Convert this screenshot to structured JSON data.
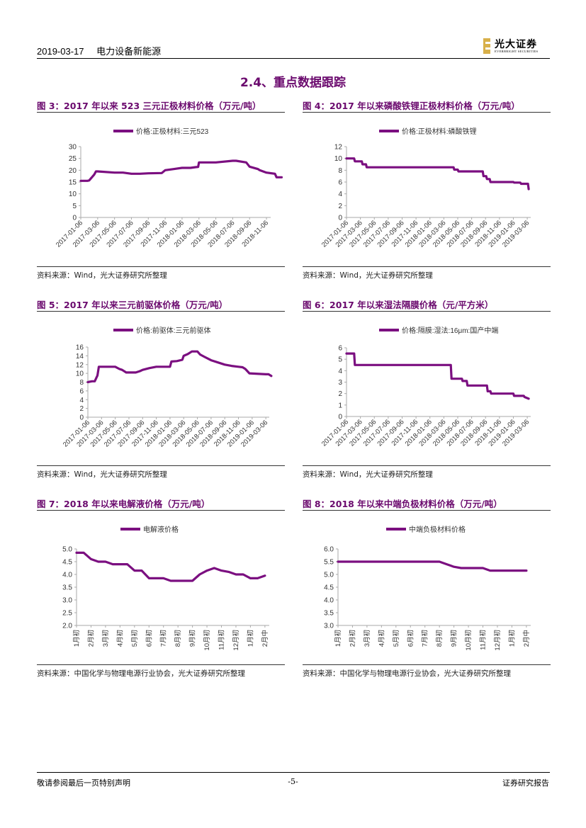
{
  "header": {
    "date": "2019-03-17",
    "sector": "电力设备新能源",
    "logo_cn": "光大证券",
    "logo_en": "EVERBRIGHT SECURITIES",
    "logo_color": "#d8b04a"
  },
  "section_title": "2.4、重点数据跟踪",
  "accent_color": "#6b0a6e",
  "line_color": "#7b0f80",
  "figures": [
    {
      "title": "图 3：2017 年以来 523 三元正极材料价格（万元/吨）",
      "source": "资料来源：Wind，光大证券研究所整理"
    },
    {
      "title": "图 4：2017 年以来磷酸铁锂正极材料价格（万元/吨）",
      "source": "资料来源：Wind，光大证券研究所整理"
    },
    {
      "title": "图 5：2017 年以来三元前驱体价格（万元/吨）",
      "source": "资料来源：Wind，光大证券研究所整理"
    },
    {
      "title": "图 6：2017 年以来湿法隔膜价格（元/平方米）",
      "source": "资料来源：Wind，光大证券研究所整理"
    },
    {
      "title": "图 7：2018 年以来电解液价格（万元/吨）",
      "source": "资料来源：中国化学与物理电源行业协会，光大证券研究所整理"
    },
    {
      "title": "图 8：2018 年以来中端负极材料价格（万元/吨）",
      "source": "资料来源：中国化学与物理电源行业协会，光大证券研究所整理"
    }
  ],
  "chart_data": [
    {
      "type": "line",
      "title": "2017年以来523三元正极材料价格（万元/吨）",
      "legend": "价格:正极材料:三元523",
      "legend_position": "top",
      "xlabel": "",
      "ylabel": "",
      "ylim": [
        0,
        30
      ],
      "yticks": [
        "0",
        "5",
        "10",
        "15",
        "20",
        "25",
        "30"
      ],
      "categories": [
        "2017-01-06",
        "2017-03-06",
        "2017-05-06",
        "2017-07-06",
        "2017-09-06",
        "2017-11-06",
        "2018-01-06",
        "2018-03-06",
        "2018-05-06",
        "2018-07-06",
        "2018-09-06",
        "2018-11-06"
      ],
      "x": [
        0,
        0.4,
        0.5,
        0.8,
        0.9,
        1.0,
        2.0,
        2.5,
        3.0,
        3.5,
        4.0,
        4.8,
        5.0,
        5.5,
        6.0,
        6.5,
        6.8,
        6.95,
        7.0,
        8.0,
        9.0,
        9.2,
        9.8,
        10.0,
        10.5,
        10.6,
        11.0,
        11.5,
        11.6,
        11.9
      ],
      "values": [
        15.5,
        15.5,
        15.7,
        18.2,
        19.5,
        19.5,
        19,
        19,
        18.5,
        18.5,
        18.7,
        18.8,
        20,
        20.5,
        21,
        21,
        21.3,
        21.4,
        23.3,
        23.3,
        24,
        24,
        23.3,
        21.5,
        20.5,
        20,
        19,
        18.5,
        17,
        17
      ]
    },
    {
      "type": "line",
      "title": "2017年以来磷酸铁锂正极材料价格（万元/吨）",
      "legend": "价格:正极材料:磷酸铁锂",
      "legend_position": "top",
      "ylim": [
        0,
        12
      ],
      "yticks": [
        "0",
        "2",
        "4",
        "6",
        "8",
        "10",
        "12"
      ],
      "categories": [
        "2017-01-06",
        "2017-03-06",
        "2017-05-06",
        "2017-07-06",
        "2017-09-06",
        "2017-11-06",
        "2018-01-06",
        "2018-03-06",
        "2018-05-06",
        "2018-07-06",
        "2018-09-06",
        "2018-11-06",
        "2019-01-06",
        "2019-03-06"
      ],
      "x": [
        0,
        0.55,
        0.6,
        1.1,
        1.15,
        1.4,
        1.45,
        7.7,
        7.75,
        8.0,
        8.05,
        9.8,
        9.85,
        10.05,
        10.1,
        10.3,
        10.35,
        12.0,
        12.05,
        12.5,
        12.55,
        13.05,
        13.1
      ],
      "values": [
        10,
        10,
        9.5,
        9.5,
        9,
        9,
        8.5,
        8.5,
        8.1,
        8.1,
        7.8,
        7.8,
        7,
        7,
        6.5,
        6.5,
        6,
        6,
        5.9,
        5.9,
        5.7,
        5.7,
        4.8
      ]
    },
    {
      "type": "line",
      "title": "2017年以来三元前驱体价格（万元/吨）",
      "legend": "价格:前驱体:三元前驱体",
      "legend_position": "top",
      "ylim": [
        0,
        16
      ],
      "yticks": [
        "0",
        "2",
        "4",
        "6",
        "8",
        "10",
        "12",
        "14",
        "16"
      ],
      "categories": [
        "2017-01-06",
        "2017-03-06",
        "2017-05-06",
        "2017-07-06",
        "2017-09-06",
        "2017-11-06",
        "2018-01-06",
        "2018-03-06",
        "2018-05-06",
        "2018-07-06",
        "2018-09-06",
        "2018-11-06",
        "2019-01-06",
        "2019-03-06"
      ],
      "x": [
        0,
        0.3,
        0.5,
        0.7,
        0.8,
        1.0,
        2.0,
        2.3,
        2.5,
        2.8,
        3.0,
        3.5,
        3.8,
        4.0,
        4.5,
        5.0,
        5.5,
        6.0,
        6.1,
        6.5,
        6.9,
        7.0,
        7.3,
        7.6,
        8.0,
        8.2,
        8.5,
        9.0,
        9.5,
        10.0,
        10.5,
        11.0,
        11.3,
        11.5,
        11.8,
        13.0,
        13.2,
        13.4
      ],
      "values": [
        8,
        8.2,
        8.2,
        9.5,
        11.5,
        11.5,
        11.5,
        11,
        10.8,
        10.2,
        10.2,
        10.2,
        10.5,
        10.8,
        11.2,
        11.5,
        11.5,
        11.5,
        12.7,
        12.8,
        13.1,
        14,
        14.4,
        15,
        15,
        14.3,
        13.8,
        13,
        12.5,
        12,
        11.7,
        11.5,
        11.4,
        11,
        10,
        9.8,
        9.8,
        9.4
      ]
    },
    {
      "type": "line",
      "title": "2017年以来湿法隔膜价格（元/平方米）",
      "legend": "价格:隔膜:湿法:16μm:国产中端",
      "legend_position": "top",
      "ylim": [
        0,
        6
      ],
      "yticks": [
        "0",
        "1",
        "2",
        "3",
        "4",
        "5",
        "6"
      ],
      "categories": [
        "2017-01-06",
        "2017-03-06",
        "2017-05-06",
        "2017-07-06",
        "2017-09-06",
        "2017-11-06",
        "2018-01-06",
        "2018-03-06",
        "2018-05-06",
        "2018-07-06",
        "2018-09-06",
        "2018-11-06",
        "2019-01-06",
        "2019-03-06"
      ],
      "x": [
        0,
        0.55,
        0.6,
        7.5,
        7.55,
        8.3,
        8.35,
        8.65,
        8.7,
        10.1,
        10.15,
        10.35,
        10.4,
        12.0,
        12.05,
        12.75,
        12.8,
        13.1
      ],
      "values": [
        5.5,
        5.5,
        4.5,
        4.5,
        3.3,
        3.3,
        3.1,
        3.1,
        2.7,
        2.7,
        2.2,
        2.2,
        2.0,
        2.0,
        1.8,
        1.8,
        1.7,
        1.55
      ]
    },
    {
      "type": "line",
      "title": "2018年以来电解液价格（万元/吨）",
      "legend": "电解液价格",
      "legend_position": "top",
      "ylim": [
        2.0,
        5.0
      ],
      "yticks": [
        "2.0",
        "2.5",
        "3.0",
        "3.5",
        "4.0",
        "4.5",
        "5.0"
      ],
      "categories": [
        "1月初",
        "2月初",
        "3月初",
        "4月初",
        "5月初",
        "6月初",
        "7月初",
        "8月初",
        "9月初",
        "10月初",
        "11月初",
        "12月初",
        "1月初",
        "2月中"
      ],
      "x": [
        0,
        0.5,
        1.0,
        1.5,
        2.0,
        2.5,
        3.0,
        3.5,
        4.0,
        4.5,
        5.0,
        5.5,
        6.0,
        6.5,
        7.0,
        7.5,
        8.0,
        8.5,
        9.0,
        9.5,
        10.0,
        10.5,
        11.0,
        11.5,
        12.0,
        12.5,
        13.0
      ],
      "values": [
        4.85,
        4.85,
        4.6,
        4.5,
        4.5,
        4.4,
        4.4,
        4.4,
        4.15,
        4.15,
        3.85,
        3.85,
        3.85,
        3.75,
        3.75,
        3.75,
        3.75,
        4.0,
        4.15,
        4.25,
        4.15,
        4.1,
        4.0,
        4.0,
        3.85,
        3.85,
        3.95
      ]
    },
    {
      "type": "line",
      "title": "2018年以来中端负极材料价格（万元/吨）",
      "legend": "中端负极材料价格",
      "legend_position": "top",
      "ylim": [
        3.0,
        6.0
      ],
      "yticks": [
        "3.0",
        "3.5",
        "4.0",
        "4.5",
        "5.0",
        "5.5",
        "6.0"
      ],
      "categories": [
        "1月初",
        "2月初",
        "3月初",
        "4月初",
        "5月初",
        "6月初",
        "7月初",
        "8月初",
        "9月初",
        "10月初",
        "11月初",
        "12月初",
        "1月初",
        "2月中"
      ],
      "x": [
        0,
        1,
        2,
        3,
        4,
        5,
        6,
        7,
        7.5,
        8,
        8.5,
        9,
        10,
        10.5,
        11,
        12,
        13
      ],
      "values": [
        5.5,
        5.5,
        5.5,
        5.5,
        5.5,
        5.5,
        5.5,
        5.5,
        5.4,
        5.3,
        5.25,
        5.25,
        5.25,
        5.15,
        5.15,
        5.15,
        5.15
      ]
    }
  ],
  "footer": {
    "left": "敬请参阅最后一页特别声明",
    "center": "-5-",
    "right": "证券研究报告"
  }
}
